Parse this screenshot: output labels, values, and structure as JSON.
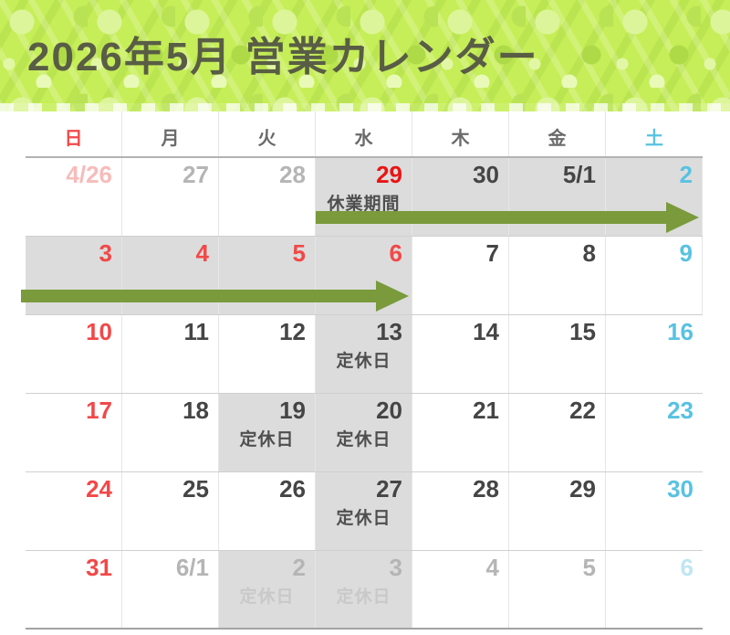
{
  "title": "2026年5月 営業カレンダー",
  "colors": {
    "banner_base": "#c6ee58",
    "title": "#595d45",
    "red": "#f24848",
    "bright_red": "#e91414",
    "teal": "#58c2e2",
    "dark": "#454545",
    "muted": "#b5b5b5",
    "pale_red": "#f6bcba",
    "pale_teal": "#bfe6f2",
    "gray": "#6a6a6a",
    "label": "#4f4f4f",
    "label_muted": "#c9c9c9",
    "shade": "#dcdcdc",
    "green": "#7a9a3c",
    "vline": "#e6e6e6",
    "hline": "#cfcfcf"
  },
  "calendar": {
    "weekday_headers": [
      {
        "key": "sun",
        "label": "日",
        "color": "red"
      },
      {
        "key": "mon",
        "label": "月",
        "color": "gray"
      },
      {
        "key": "tue",
        "label": "火",
        "color": "gray"
      },
      {
        "key": "wed",
        "label": "水",
        "color": "gray"
      },
      {
        "key": "thu",
        "label": "木",
        "color": "gray"
      },
      {
        "key": "fri",
        "label": "金",
        "color": "gray"
      },
      {
        "key": "sat",
        "label": "土",
        "color": "teal"
      }
    ],
    "closed_period_label": "休業期間",
    "regular_holiday_label": "定休日",
    "weeks": [
      [
        {
          "date": "4/26",
          "color": "pale-red",
          "shaded": false
        },
        {
          "date": "27",
          "color": "muted",
          "shaded": false
        },
        {
          "date": "28",
          "color": "muted",
          "shaded": false
        },
        {
          "date": "29",
          "color": "bright-red",
          "shaded": true,
          "label": "休業期間"
        },
        {
          "date": "30",
          "color": "dark",
          "shaded": true
        },
        {
          "date": "5/1",
          "color": "dark",
          "shaded": true
        },
        {
          "date": "2",
          "color": "teal",
          "shaded": true
        }
      ],
      [
        {
          "date": "3",
          "color": "red",
          "shaded": true
        },
        {
          "date": "4",
          "color": "red",
          "shaded": true
        },
        {
          "date": "5",
          "color": "red",
          "shaded": true
        },
        {
          "date": "6",
          "color": "red",
          "shaded": true
        },
        {
          "date": "7",
          "color": "dark",
          "shaded": false
        },
        {
          "date": "8",
          "color": "dark",
          "shaded": false
        },
        {
          "date": "9",
          "color": "teal",
          "shaded": false
        }
      ],
      [
        {
          "date": "10",
          "color": "red",
          "shaded": false
        },
        {
          "date": "11",
          "color": "dark",
          "shaded": false
        },
        {
          "date": "12",
          "color": "dark",
          "shaded": false
        },
        {
          "date": "13",
          "color": "dark",
          "shaded": true,
          "label": "定休日"
        },
        {
          "date": "14",
          "color": "dark",
          "shaded": false
        },
        {
          "date": "15",
          "color": "dark",
          "shaded": false
        },
        {
          "date": "16",
          "color": "teal",
          "shaded": false
        }
      ],
      [
        {
          "date": "17",
          "color": "red",
          "shaded": false
        },
        {
          "date": "18",
          "color": "dark",
          "shaded": false
        },
        {
          "date": "19",
          "color": "dark",
          "shaded": true,
          "label": "定休日"
        },
        {
          "date": "20",
          "color": "dark",
          "shaded": true,
          "label": "定休日"
        },
        {
          "date": "21",
          "color": "dark",
          "shaded": false
        },
        {
          "date": "22",
          "color": "dark",
          "shaded": false
        },
        {
          "date": "23",
          "color": "teal",
          "shaded": false
        }
      ],
      [
        {
          "date": "24",
          "color": "red",
          "shaded": false
        },
        {
          "date": "25",
          "color": "dark",
          "shaded": false
        },
        {
          "date": "26",
          "color": "dark",
          "shaded": false
        },
        {
          "date": "27",
          "color": "dark",
          "shaded": true,
          "label": "定休日"
        },
        {
          "date": "28",
          "color": "dark",
          "shaded": false
        },
        {
          "date": "29",
          "color": "dark",
          "shaded": false
        },
        {
          "date": "30",
          "color": "teal",
          "shaded": false
        }
      ],
      [
        {
          "date": "31",
          "color": "red",
          "shaded": false
        },
        {
          "date": "6/1",
          "color": "muted",
          "shaded": false
        },
        {
          "date": "2",
          "color": "muted",
          "shaded": true,
          "label": "定休日",
          "label_muted": true
        },
        {
          "date": "3",
          "color": "muted",
          "shaded": true,
          "label": "定休日",
          "label_muted": true
        },
        {
          "date": "4",
          "color": "muted",
          "shaded": false
        },
        {
          "date": "5",
          "color": "muted",
          "shaded": false
        },
        {
          "date": "6",
          "color": "pale-teal",
          "shaded": false
        }
      ]
    ],
    "arrows": [
      {
        "week_index": 0,
        "from_col": 3,
        "to_col": 6,
        "direction": "right"
      },
      {
        "week_index": 1,
        "from_col": 0,
        "to_col": 3,
        "direction": "right"
      }
    ]
  }
}
